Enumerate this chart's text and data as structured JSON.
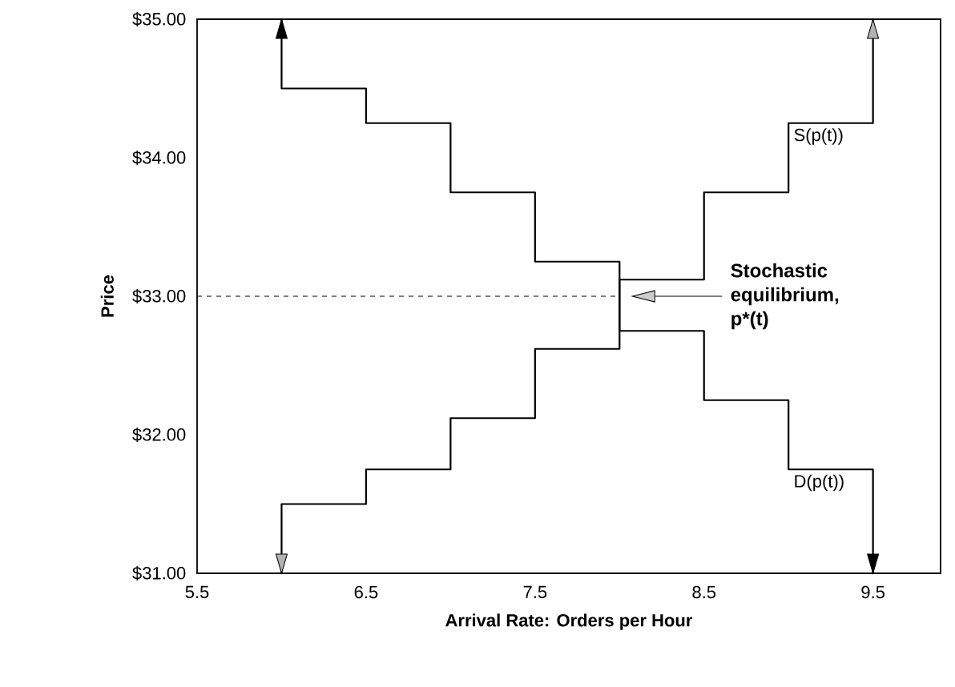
{
  "chart_data": {
    "type": "step",
    "xlabel": "Arrival Rate: Orders per Hour",
    "ylabel": "Price",
    "series": [
      {
        "name": "D(p(t))",
        "color": "#000000",
        "x": [
          6,
          6,
          6.5,
          7,
          7.5,
          8,
          8.5,
          9,
          9.5,
          9.5
        ],
        "values": [
          35,
          34.5,
          34.25,
          33.75,
          33.25,
          32.75,
          32.25,
          31.75,
          31.75,
          31
        ]
      },
      {
        "name": "S(p(t))",
        "color": "#000000",
        "x": [
          6,
          6,
          6.5,
          7,
          7.5,
          8,
          8.5,
          9,
          9.5,
          9.5
        ],
        "values": [
          31,
          31.5,
          31.75,
          32.12,
          32.62,
          33.12,
          33.75,
          34.25,
          34.25,
          35
        ]
      }
    ],
    "xlim": [
      5.5,
      9.9
    ],
    "ylim": [
      31,
      35
    ],
    "xticks": [
      5.5,
      6.5,
      7.5,
      8.5,
      9.5
    ],
    "yticks": [
      {
        "value": 31,
        "label": "$31.00"
      },
      {
        "value": 32,
        "label": "$32.00"
      },
      {
        "value": 33,
        "label": "$33.00"
      },
      {
        "value": 34,
        "label": "$34.00"
      },
      {
        "value": 35,
        "label": "$35.00"
      }
    ],
    "ref_lines": [
      {
        "axis": "y",
        "value": 33,
        "line_style": "dashed"
      }
    ],
    "annotations": [
      "Stochastic equilibrium, p*(t)"
    ],
    "grid": false,
    "marker": "none",
    "line_style": "solid"
  }
}
